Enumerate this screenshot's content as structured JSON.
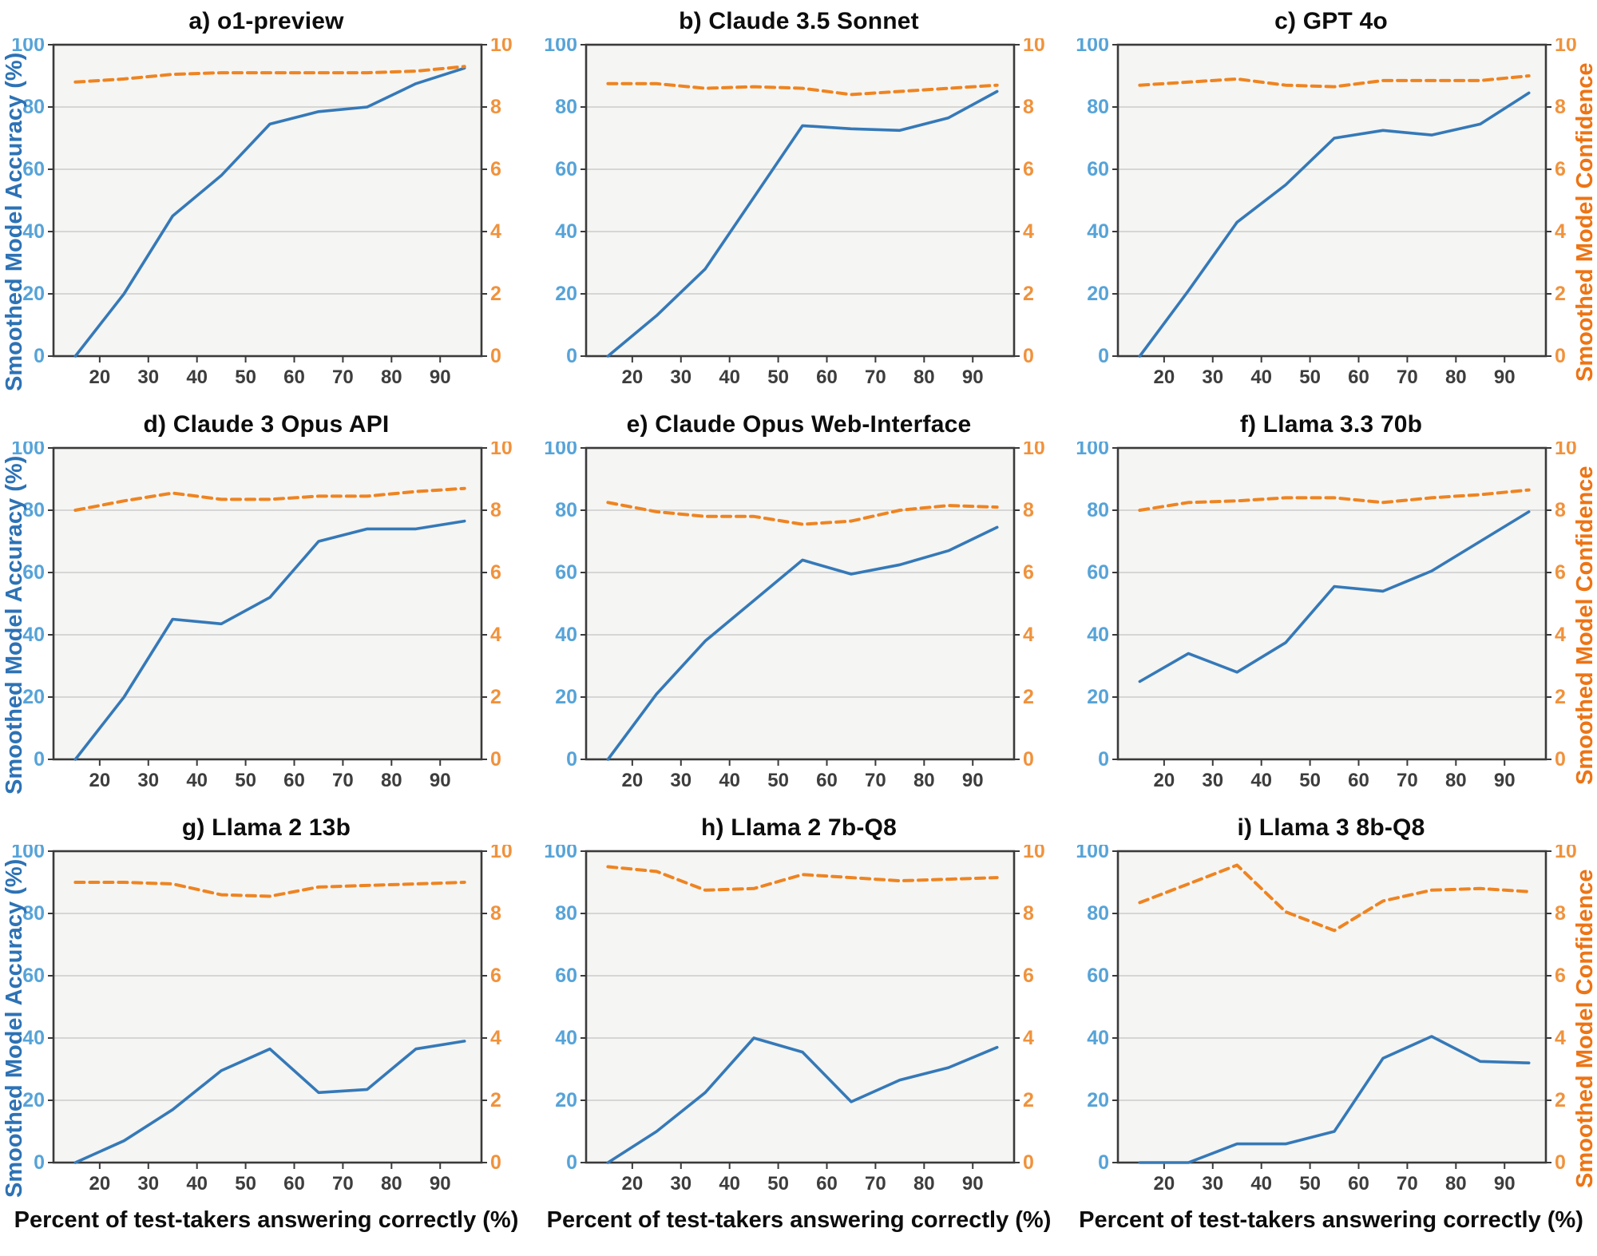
{
  "figure": {
    "left_axis_label": "Smoothed Model Accuracy (%)",
    "right_axis_label": "Smoothed Model Confidence",
    "x_axis_label": "Percent of test-takers answering correctly (%)",
    "xlim": [
      10.5,
      98.5
    ],
    "left_ylim": [
      0,
      100
    ],
    "right_ylim": [
      0,
      10
    ],
    "x_ticks": [
      20,
      30,
      40,
      50,
      60,
      70,
      80,
      90
    ],
    "left_ticks": [
      0,
      20,
      40,
      60,
      80,
      100
    ],
    "right_ticks": [
      0,
      2,
      4,
      6,
      8,
      10
    ],
    "grid_ticks": [
      20,
      40,
      60,
      80
    ],
    "grid": "on",
    "legend_position": "none",
    "colors": {
      "accuracy_line": "#3579b8",
      "confidence_line": "#ee8421",
      "left_tick_labels": "#56a3d8",
      "left_axis_label": "#2d72b5",
      "right_tick_labels": "#f0923c",
      "right_axis_label": "#ed7414",
      "x_tick_labels": "#3d3d3d",
      "grid_line": "#cccccc",
      "spine": "#3a3a3a",
      "plot_background": "#f5f5f3",
      "title_text": "#0d0d0d"
    }
  },
  "chart_data": [
    {
      "type": "line",
      "title": "a) o1-preview",
      "x": [
        15,
        25,
        35,
        45,
        55,
        65,
        75,
        85,
        95
      ],
      "series": [
        {
          "name": "Smoothed Model Accuracy (%)",
          "axis": "left",
          "style": "solid",
          "values": [
            0,
            20,
            45,
            58,
            74.5,
            78.5,
            80,
            87.5,
            92.5
          ]
        },
        {
          "name": "Smoothed Model Confidence",
          "axis": "right",
          "style": "dashed",
          "values": [
            8.8,
            8.9,
            9.05,
            9.1,
            9.1,
            9.1,
            9.1,
            9.15,
            9.3
          ]
        }
      ]
    },
    {
      "type": "line",
      "title": "b) Claude 3.5 Sonnet",
      "x": [
        15,
        25,
        35,
        45,
        55,
        65,
        75,
        85,
        95
      ],
      "series": [
        {
          "name": "Smoothed Model Accuracy (%)",
          "axis": "left",
          "style": "solid",
          "values": [
            0,
            13,
            28,
            51,
            74,
            73,
            72.5,
            76.5,
            85
          ]
        },
        {
          "name": "Smoothed Model Confidence",
          "axis": "right",
          "style": "dashed",
          "values": [
            8.75,
            8.75,
            8.6,
            8.65,
            8.6,
            8.4,
            8.5,
            8.6,
            8.7
          ]
        }
      ]
    },
    {
      "type": "line",
      "title": "c) GPT 4o",
      "x": [
        15,
        25,
        35,
        45,
        55,
        65,
        75,
        85,
        95
      ],
      "series": [
        {
          "name": "Smoothed Model Accuracy (%)",
          "axis": "left",
          "style": "solid",
          "values": [
            0,
            21,
            43,
            55,
            70,
            72.5,
            71,
            74.5,
            84.5
          ]
        },
        {
          "name": "Smoothed Model Confidence",
          "axis": "right",
          "style": "dashed",
          "values": [
            8.7,
            8.8,
            8.9,
            8.7,
            8.65,
            8.85,
            8.85,
            8.85,
            9.0
          ]
        }
      ]
    },
    {
      "type": "line",
      "title": "d) Claude 3 Opus API",
      "x": [
        15,
        25,
        35,
        45,
        55,
        65,
        75,
        85,
        95
      ],
      "series": [
        {
          "name": "Smoothed Model Accuracy (%)",
          "axis": "left",
          "style": "solid",
          "values": [
            0,
            20,
            45,
            43.5,
            52,
            70,
            74,
            74,
            76.5
          ]
        },
        {
          "name": "Smoothed Model Confidence",
          "axis": "right",
          "style": "dashed",
          "values": [
            8.0,
            8.3,
            8.55,
            8.35,
            8.35,
            8.45,
            8.45,
            8.6,
            8.7
          ]
        }
      ]
    },
    {
      "type": "line",
      "title": "e) Claude Opus Web-Interface",
      "x": [
        15,
        25,
        35,
        45,
        55,
        65,
        75,
        85,
        95
      ],
      "series": [
        {
          "name": "Smoothed Model Accuracy (%)",
          "axis": "left",
          "style": "solid",
          "values": [
            0,
            21,
            38,
            51,
            64,
            59.5,
            62.5,
            67,
            74.5
          ]
        },
        {
          "name": "Smoothed Model Confidence",
          "axis": "right",
          "style": "dashed",
          "values": [
            8.25,
            7.95,
            7.8,
            7.8,
            7.55,
            7.65,
            8.0,
            8.15,
            8.1
          ]
        }
      ]
    },
    {
      "type": "line",
      "title": "f) Llama 3.3 70b",
      "x": [
        15,
        25,
        35,
        45,
        55,
        65,
        75,
        85,
        95
      ],
      "series": [
        {
          "name": "Smoothed Model Accuracy (%)",
          "axis": "left",
          "style": "solid",
          "values": [
            25,
            34,
            28,
            37.5,
            55.5,
            54,
            60.5,
            70,
            79.5
          ]
        },
        {
          "name": "Smoothed Model Confidence",
          "axis": "right",
          "style": "dashed",
          "values": [
            8.0,
            8.25,
            8.3,
            8.4,
            8.4,
            8.25,
            8.4,
            8.5,
            8.65
          ]
        }
      ]
    },
    {
      "type": "line",
      "title": "g) Llama 2 13b",
      "x": [
        15,
        25,
        35,
        45,
        55,
        65,
        75,
        85,
        95
      ],
      "series": [
        {
          "name": "Smoothed Model Accuracy (%)",
          "axis": "left",
          "style": "solid",
          "values": [
            0,
            7,
            17,
            29.5,
            36.5,
            22.5,
            23.5,
            36.5,
            39
          ]
        },
        {
          "name": "Smoothed Model Confidence",
          "axis": "right",
          "style": "dashed",
          "values": [
            9.0,
            9.0,
            8.95,
            8.6,
            8.55,
            8.85,
            8.9,
            8.95,
            9.0
          ]
        }
      ]
    },
    {
      "type": "line",
      "title": "h) Llama 2 7b-Q8",
      "x": [
        15,
        25,
        35,
        45,
        55,
        65,
        75,
        85,
        95
      ],
      "series": [
        {
          "name": "Smoothed Model Accuracy (%)",
          "axis": "left",
          "style": "solid",
          "values": [
            0,
            10,
            22.5,
            40,
            35.5,
            19.5,
            26.5,
            30.5,
            37
          ]
        },
        {
          "name": "Smoothed Model Confidence",
          "axis": "right",
          "style": "dashed",
          "values": [
            9.5,
            9.35,
            8.75,
            8.8,
            9.25,
            9.15,
            9.05,
            9.1,
            9.15
          ]
        }
      ]
    },
    {
      "type": "line",
      "title": "i) Llama 3 8b-Q8",
      "x": [
        15,
        25,
        35,
        45,
        55,
        65,
        75,
        85,
        95
      ],
      "series": [
        {
          "name": "Smoothed Model Accuracy (%)",
          "axis": "left",
          "style": "solid",
          "values": [
            0,
            0,
            6,
            6,
            10,
            33.5,
            40.5,
            32.5,
            32
          ]
        },
        {
          "name": "Smoothed Model Confidence",
          "axis": "right",
          "style": "dashed",
          "values": [
            8.35,
            8.95,
            9.55,
            8.05,
            7.45,
            8.4,
            8.75,
            8.8,
            8.7
          ]
        }
      ]
    }
  ]
}
